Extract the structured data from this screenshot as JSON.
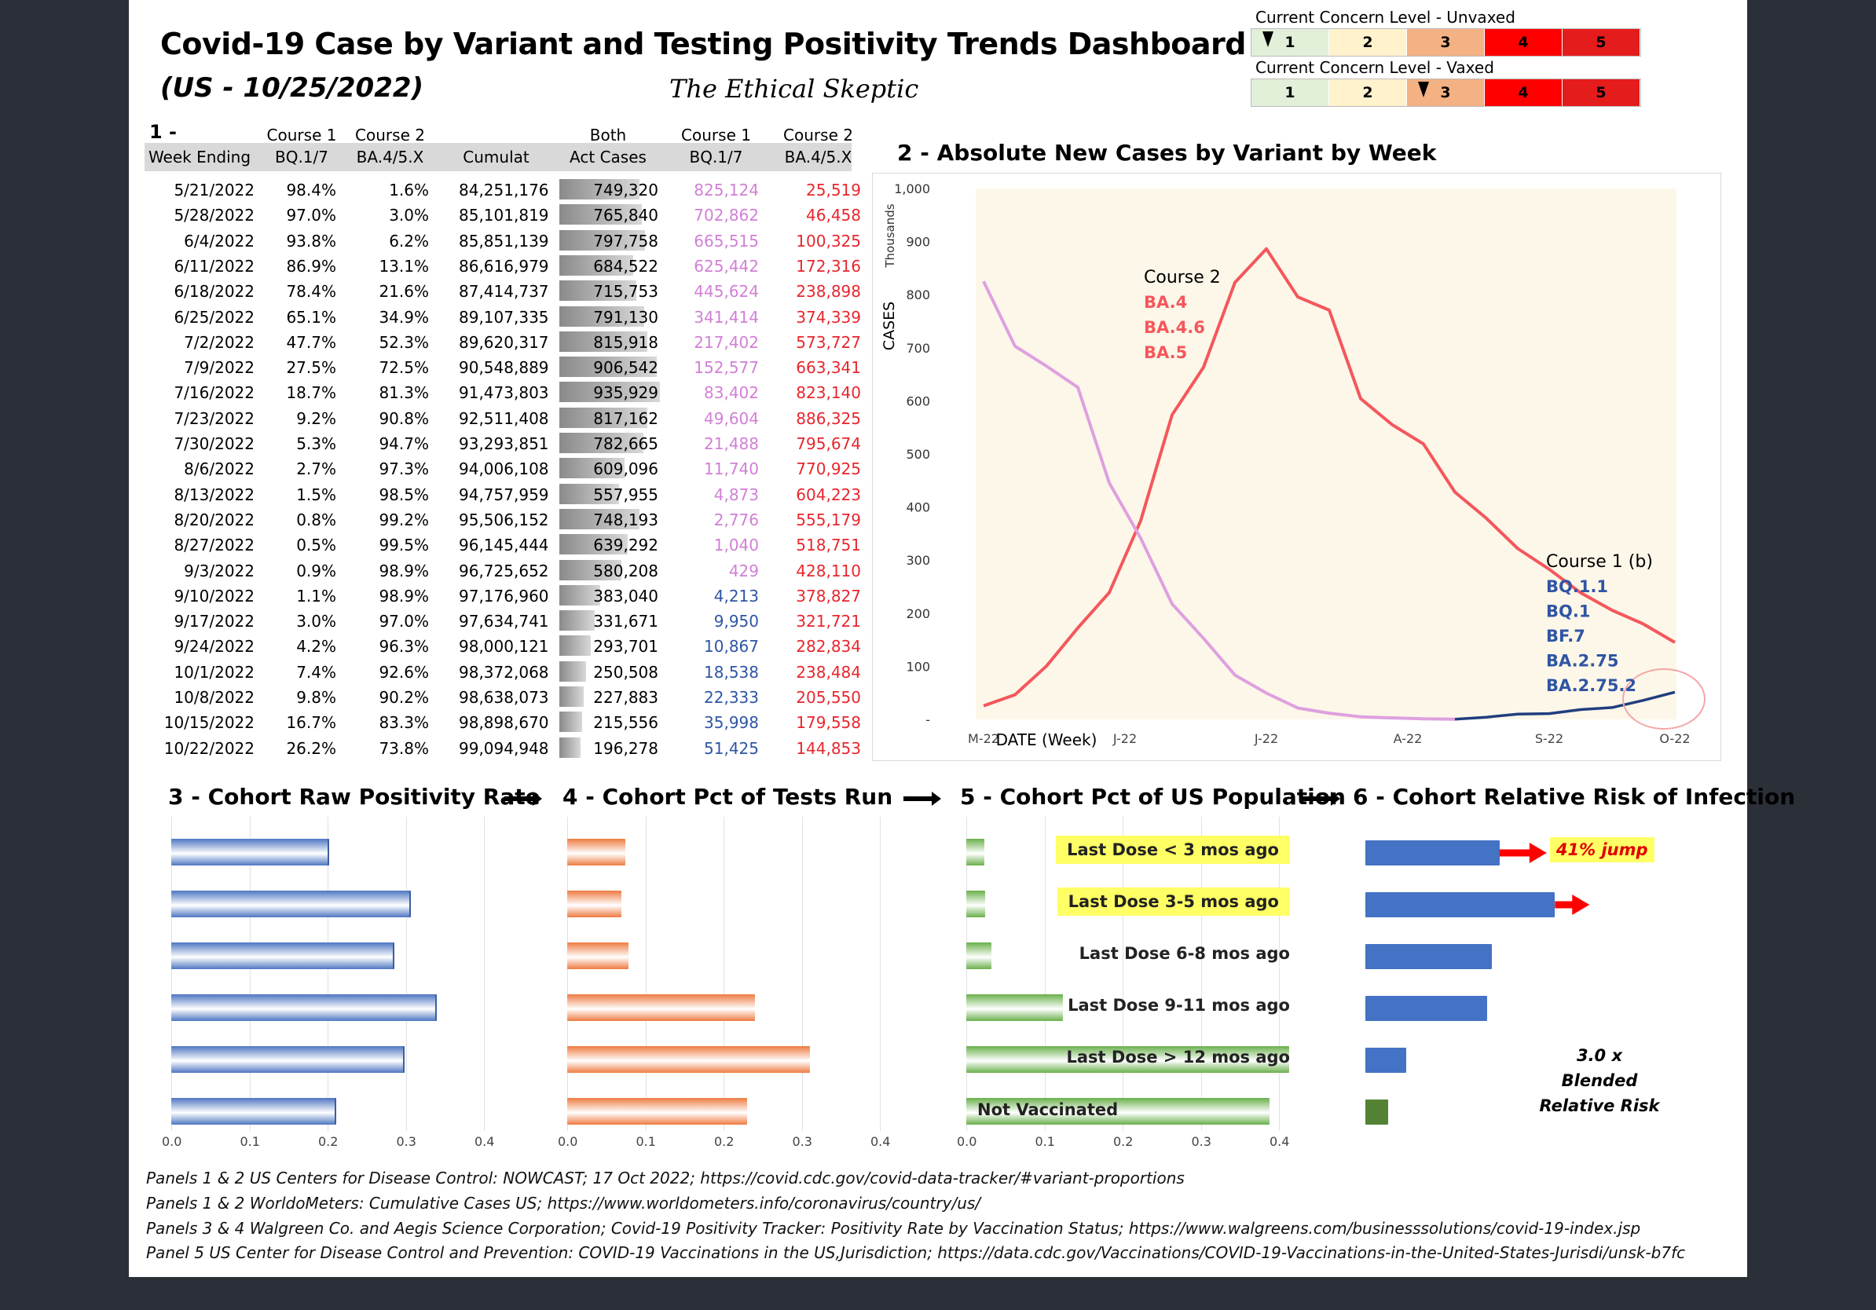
{
  "header": {
    "title": "Covid-19 Case by Variant and Testing Positivity Trends Dashboard",
    "subtitle": "(US - 10/25/2022)",
    "brand": "The Ethical Skeptic"
  },
  "concern": {
    "unvaxed_label": "Current Concern Level - Unvaxed",
    "vaxed_label": "Current Concern Level - Vaxed",
    "levels": [
      "1",
      "2",
      "3",
      "4",
      "5"
    ],
    "colors": [
      "#e2efd9",
      "#fff2cc",
      "#f4b183",
      "#ff0000",
      "#e51c1c"
    ],
    "unvaxed_level": 1,
    "vaxed_level": 3
  },
  "table": {
    "panel_label": "1 -",
    "header1": [
      "",
      "Course 1",
      "Course 2",
      "",
      "Both",
      "Course 1",
      "Course 2"
    ],
    "header2": [
      "Week Ending",
      "BQ.1/7",
      "BA.4/5.X",
      "Cumulat",
      "Act Cases",
      "BQ.1/7",
      "BA.4/5.X"
    ],
    "rows": [
      [
        "5/21/2022",
        "98.4%",
        "1.6%",
        "84,251,176",
        "749,320",
        "825,124",
        "25,519"
      ],
      [
        "5/28/2022",
        "97.0%",
        "3.0%",
        "85,101,819",
        "765,840",
        "702,862",
        "46,458"
      ],
      [
        "6/4/2022",
        "93.8%",
        "6.2%",
        "85,851,139",
        "797,758",
        "665,515",
        "100,325"
      ],
      [
        "6/11/2022",
        "86.9%",
        "13.1%",
        "86,616,979",
        "684,522",
        "625,442",
        "172,316"
      ],
      [
        "6/18/2022",
        "78.4%",
        "21.6%",
        "87,414,737",
        "715,753",
        "445,624",
        "238,898"
      ],
      [
        "6/25/2022",
        "65.1%",
        "34.9%",
        "89,107,335",
        "791,130",
        "341,414",
        "374,339"
      ],
      [
        "7/2/2022",
        "47.7%",
        "52.3%",
        "89,620,317",
        "815,918",
        "217,402",
        "573,727"
      ],
      [
        "7/9/2022",
        "27.5%",
        "72.5%",
        "90,548,889",
        "906,542",
        "152,577",
        "663,341"
      ],
      [
        "7/16/2022",
        "18.7%",
        "81.3%",
        "91,473,803",
        "935,929",
        "83,402",
        "823,140"
      ],
      [
        "7/23/2022",
        "9.2%",
        "90.8%",
        "92,511,408",
        "817,162",
        "49,604",
        "886,325"
      ],
      [
        "7/30/2022",
        "5.3%",
        "94.7%",
        "93,293,851",
        "782,665",
        "21,488",
        "795,674"
      ],
      [
        "8/6/2022",
        "2.7%",
        "97.3%",
        "94,006,108",
        "609,096",
        "11,740",
        "770,925"
      ],
      [
        "8/13/2022",
        "1.5%",
        "98.5%",
        "94,757,959",
        "557,955",
        "4,873",
        "604,223"
      ],
      [
        "8/20/2022",
        "0.8%",
        "99.2%",
        "95,506,152",
        "748,193",
        "2,776",
        "555,179"
      ],
      [
        "8/27/2022",
        "0.5%",
        "99.5%",
        "96,145,444",
        "639,292",
        "1,040",
        "518,751"
      ],
      [
        "9/3/2022",
        "0.9%",
        "98.9%",
        "96,725,652",
        "580,208",
        "429",
        "428,110"
      ],
      [
        "9/10/2022",
        "1.1%",
        "98.9%",
        "97,176,960",
        "383,040",
        "4,213",
        "378,827"
      ],
      [
        "9/17/2022",
        "3.0%",
        "97.0%",
        "97,634,741",
        "331,671",
        "9,950",
        "321,721"
      ],
      [
        "9/24/2022",
        "4.2%",
        "96.3%",
        "98,000,121",
        "293,701",
        "10,867",
        "282,834"
      ],
      [
        "10/1/2022",
        "7.4%",
        "92.6%",
        "98,372,068",
        "250,508",
        "18,538",
        "238,484"
      ],
      [
        "10/8/2022",
        "9.8%",
        "90.2%",
        "98,638,073",
        "227,883",
        "22,333",
        "205,550"
      ],
      [
        "10/15/2022",
        "16.7%",
        "83.3%",
        "98,898,670",
        "215,556",
        "35,998",
        "179,558"
      ],
      [
        "10/22/2022",
        "26.2%",
        "73.8%",
        "99,094,948",
        "196,278",
        "51,425",
        "144,853"
      ]
    ],
    "course1_color": "#d17fd6",
    "course1_blue_color": "#2f55a4",
    "course2_color": "#e8262d"
  },
  "panel_titles": {
    "p2": "2 - Absolute  New Cases by Variant  by Week",
    "p3": "3 - Cohort Raw Positivity Rate",
    "p4": "4 - Cohort Pct of Tests Run",
    "p5": "5 - Cohort Pct of US Population",
    "p6": "6 - Cohort Relative Risk of Infection"
  },
  "chart_data": [
    {
      "type": "line",
      "title": "2 - Absolute  New Cases by Variant  by Week",
      "xlabel": "DATE (Week)",
      "ylabel": "CASES",
      "yunit": "Thousands",
      "ylim": [
        0,
        1000
      ],
      "yticks": [
        "-",
        "100",
        "200",
        "300",
        "400",
        "500",
        "600",
        "700",
        "800",
        "900",
        "1,000"
      ],
      "xticks": [
        "M-22",
        "J-22",
        "J-22",
        "A-22",
        "S-22",
        "O-22"
      ],
      "x": [
        "5/21/2022",
        "5/28/2022",
        "6/4/2022",
        "6/11/2022",
        "6/18/2022",
        "6/25/2022",
        "7/2/2022",
        "7/9/2022",
        "7/16/2022",
        "7/23/2022",
        "7/30/2022",
        "8/6/2022",
        "8/13/2022",
        "8/20/2022",
        "8/27/2022",
        "9/3/2022",
        "9/10/2022",
        "9/17/2022",
        "9/24/2022",
        "10/1/2022",
        "10/8/2022",
        "10/15/2022",
        "10/22/2022"
      ],
      "series": [
        {
          "name": "Course 2 BA.4/5.X",
          "color": "#f4575c",
          "values": [
            25.5,
            46.5,
            100.3,
            172.3,
            238.9,
            374.3,
            573.7,
            663.3,
            823.1,
            886.3,
            795.7,
            770.9,
            604.2,
            555.2,
            518.8,
            428.1,
            378.8,
            321.7,
            282.8,
            238.5,
            205.6,
            179.6,
            144.9
          ]
        },
        {
          "name": "Course 1 BQ.1/7 (early)",
          "color": "#dea0df",
          "values": [
            825.1,
            702.9,
            665.5,
            625.4,
            445.6,
            341.4,
            217.4,
            152.6,
            83.4,
            49.6,
            21.5,
            11.7,
            4.9,
            2.8,
            1.0,
            0.4,
            null,
            null,
            null,
            null,
            null,
            null,
            null
          ]
        },
        {
          "name": "Course 1 (b) BQ.1/7",
          "color": "#203e7e",
          "values": [
            null,
            null,
            null,
            null,
            null,
            null,
            null,
            null,
            null,
            null,
            null,
            null,
            null,
            null,
            null,
            0.4,
            4.2,
            10.0,
            10.9,
            18.5,
            22.3,
            36.0,
            51.4
          ]
        }
      ],
      "annotations": {
        "course2_title": "Course 2",
        "course2_variants": [
          "BA.4",
          "BA.4.6",
          "BA.5"
        ],
        "course1_title": "Course 1 (b)",
        "course1_variants": [
          "BQ.1.1",
          "BQ.1",
          "BF.7",
          "BA.2.75",
          "BA.2.75.2"
        ]
      }
    },
    {
      "type": "bar",
      "title": "3 - Cohort Raw Positivity Rate",
      "categories": [
        "Last Dose < 3 mos ago",
        "Last Dose 3-5 mos ago",
        "Last Dose 6-8 mos ago",
        "Last Dose 9-11 mos ago",
        "Last Dose > 12 mos ago",
        "Not Vaccinated"
      ],
      "values": [
        0.2,
        0.305,
        0.283,
        0.338,
        0.296,
        0.209
      ],
      "xlim": [
        0,
        0.4
      ],
      "xticks": [
        "0.0",
        "0.1",
        "0.2",
        "0.3",
        "0.4"
      ]
    },
    {
      "type": "bar",
      "title": "4 - Cohort Pct of Tests Run",
      "categories": [
        "Last Dose < 3 mos ago",
        "Last Dose 3-5 mos ago",
        "Last Dose 6-8 mos ago",
        "Last Dose 9-11 mos ago",
        "Last Dose > 12 mos ago",
        "Not Vaccinated"
      ],
      "values": [
        0.074,
        0.069,
        0.078,
        0.24,
        0.311,
        0.23
      ],
      "xlim": [
        0,
        0.4
      ],
      "xticks": [
        "0.0",
        "0.1",
        "0.2",
        "0.3",
        "0.4"
      ]
    },
    {
      "type": "bar",
      "title": "5 - Cohort Pct of US Population",
      "categories": [
        "Last Dose < 3 mos ago",
        "Last Dose 3-5 mos ago",
        "Last Dose 6-8 mos ago",
        "Last Dose 9-11 mos ago",
        "Last Dose > 12 mos ago",
        "Not Vaccinated"
      ],
      "values": [
        0.023,
        0.024,
        0.032,
        0.124,
        0.413,
        0.388
      ],
      "xlim": [
        0,
        0.4
      ],
      "xticks": [
        "0.0",
        "0.1",
        "0.2",
        "0.3",
        "0.4"
      ]
    },
    {
      "type": "bar",
      "title": "6 - Cohort Relative Risk of Infection",
      "categories": [
        "Last Dose < 3 mos ago",
        "Last Dose 3-5 mos ago",
        "Last Dose 6-8 mos ago",
        "Last Dose 9-11 mos ago",
        "Last Dose > 12 mos ago",
        "Not Vaccinated"
      ],
      "values": [
        2.67,
        3.77,
        2.52,
        2.42,
        0.82,
        0.45
      ],
      "annotations": {
        "jump": "41% jump",
        "note": [
          "3.0 x",
          "Blended",
          "Relative Risk"
        ]
      }
    }
  ],
  "dose_labels": [
    "Last Dose < 3 mos ago",
    "Last Dose 3-5 mos ago",
    "Last Dose 6-8 mos ago",
    "Last Dose 9-11 mos ago",
    "Last Dose > 12 mos ago",
    "Not Vaccinated"
  ],
  "sources": [
    "Panels 1 & 2   US Centers for Disease Control: NOWCAST; 17 Oct 2022; https://covid.cdc.gov/covid-data-tracker/#variant-proportions",
    "Panels 1 & 2   WorldoMeters: Cumulative Cases US; https://www.worldometers.info/coronavirus/country/us/",
    "Panels 3 & 4   Walgreen Co. and Aegis Science Corporation; Covid-19 Positivity Tracker: Positivity Rate by Vaccination Status; https://www.walgreens.com/businesssolutions/covid-19-index.jsp",
    "Panel 5  US Center for Disease Control and Prevention: COVID-19 Vaccinations in the US,Jurisdiction; https://data.cdc.gov/Vaccinations/COVID-19-Vaccinations-in-the-United-States-Jurisdi/unsk-b7fc"
  ]
}
